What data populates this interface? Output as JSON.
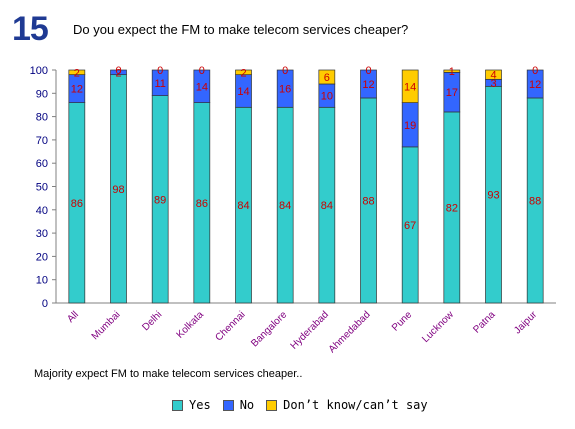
{
  "header": {
    "number": "15",
    "question": "Do you expect the FM to make telecom services cheaper?"
  },
  "note": "Majority expect FM to make telecom services cheaper..",
  "colors": {
    "yes": "#33cccc",
    "no": "#3366ff",
    "dontknow": "#ffcc00",
    "axis": "#000080",
    "category": "#800080",
    "label": "#cc0000"
  },
  "chart_data": {
    "type": "bar",
    "stacked": true,
    "title": "",
    "xlabel": "",
    "ylabel": "",
    "ylim": [
      0,
      100
    ],
    "yticks": [
      "0",
      "10",
      "20",
      "30",
      "40",
      "50",
      "60",
      "70",
      "80",
      "90",
      "100"
    ],
    "categories": [
      "All",
      "Mumbai",
      "Delhi",
      "Kolkata",
      "Chennai",
      "Bangalore",
      "Hyderabad",
      "Ahmedabad",
      "Pune",
      "Lucknow",
      "Patna",
      "Jaipur"
    ],
    "series": [
      {
        "name": "Yes",
        "values": [
          86,
          98,
          89,
          86,
          84,
          84,
          84,
          88,
          67,
          82,
          93,
          88
        ],
        "labels": [
          "86",
          "98",
          "89",
          "86",
          "84",
          "84",
          "84",
          "88",
          "67",
          "82",
          "93",
          "88"
        ]
      },
      {
        "name": "No",
        "values": [
          12,
          2,
          11,
          14,
          14,
          16,
          10,
          12,
          19,
          17,
          3,
          12
        ],
        "labels": [
          "12",
          "2",
          "11",
          "14",
          "14",
          "16",
          "10",
          "12",
          "19",
          "17",
          "3",
          "12"
        ]
      },
      {
        "name": "Don’t know/can’t say",
        "values": [
          2,
          0,
          0,
          0,
          2,
          0,
          6,
          0,
          14,
          1,
          4,
          0
        ],
        "labels": [
          "2",
          "0",
          "0",
          "0",
          "2",
          "0",
          "6",
          "0",
          "14",
          "1",
          "4",
          "0"
        ]
      }
    ],
    "legend": {
      "position": "bottom",
      "items": [
        "Yes",
        "No",
        "Don’t know/can’t say"
      ]
    },
    "grid": false
  }
}
